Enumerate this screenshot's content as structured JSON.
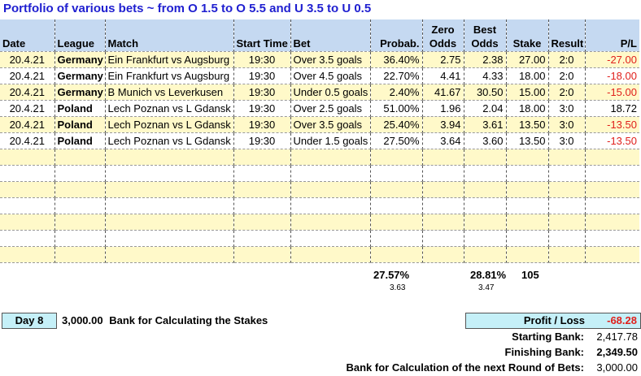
{
  "title": "Portfolio of various bets ~ from O 1.5 to O 5.5 and U 3.5 to U 0.5",
  "columns": {
    "date": "Date",
    "league": "League",
    "match": "Match",
    "start_time": "Start Time",
    "bet": "Bet",
    "probab": "Probab.",
    "zero_odds_1": "Zero",
    "zero_odds_2": "Odds",
    "best_odds_1": "Best",
    "best_odds_2": "Odds",
    "stake": "Stake",
    "result": "Result",
    "pl": "P/L"
  },
  "rows": [
    {
      "date": "20.4.21",
      "league": "Germany",
      "match": "Ein Frankfurt vs Augsburg",
      "time": "19:30",
      "bet": "Over 3.5 goals",
      "probab": "36.40%",
      "zero": "2.75",
      "best": "2.38",
      "stake": "27.00",
      "result": "2:0",
      "pl": "-27.00"
    },
    {
      "date": "20.4.21",
      "league": "Germany",
      "match": "Ein Frankfurt vs Augsburg",
      "time": "19:30",
      "bet": "Over 4.5 goals",
      "probab": "22.70%",
      "zero": "4.41",
      "best": "4.33",
      "stake": "18.00",
      "result": "2:0",
      "pl": "-18.00"
    },
    {
      "date": "20.4.21",
      "league": "Germany",
      "match": "B Munich vs Leverkusen",
      "time": "19:30",
      "bet": "Under 0.5 goals",
      "probab": "2.40%",
      "zero": "41.67",
      "best": "30.50",
      "stake": "15.00",
      "result": "2:0",
      "pl": "-15.00"
    },
    {
      "date": "20.4.21",
      "league": "Poland",
      "match": "Lech Poznan vs L Gdansk",
      "time": "19:30",
      "bet": "Over 2.5 goals",
      "probab": "51.00%",
      "zero": "1.96",
      "best": "2.04",
      "stake": "18.00",
      "result": "3:0",
      "pl": "18.72"
    },
    {
      "date": "20.4.21",
      "league": "Poland",
      "match": "Lech Poznan vs L Gdansk",
      "time": "19:30",
      "bet": "Over 3.5 goals",
      "probab": "25.40%",
      "zero": "3.94",
      "best": "3.61",
      "stake": "13.50",
      "result": "3:0",
      "pl": "-13.50"
    },
    {
      "date": "20.4.21",
      "league": "Poland",
      "match": "Lech Poznan vs L Gdansk",
      "time": "19:30",
      "bet": "Under 1.5 goals",
      "probab": "27.50%",
      "zero": "3.64",
      "best": "3.60",
      "stake": "13.50",
      "result": "3:0",
      "pl": "-13.50"
    }
  ],
  "empty_rows": 7,
  "totals": {
    "probab": "27.57%",
    "probab_sub": "3.63",
    "best": "28.81%",
    "best_sub": "3.47",
    "stake": "105"
  },
  "footer": {
    "day_label": "Day 8",
    "bank_value": "3,000.00",
    "bank_label": "Bank for Calculating the Stakes",
    "pl_label": "Profit / Loss",
    "pl_value": "-68.28",
    "starting_label": "Starting Bank:",
    "starting_value": "2,417.78",
    "finishing_label": "Finishing Bank:",
    "finishing_value": "2,349.50",
    "next_label": "Bank for Calculation of the next Round of Bets:",
    "next_value": "3,000.00"
  },
  "colors": {
    "header_bg": "#c5d9f1",
    "odd_row_bg": "#fff9c9",
    "title_color": "#1f1fd0",
    "negative": "#e0201c",
    "box_bg": "#c5f0f8"
  }
}
